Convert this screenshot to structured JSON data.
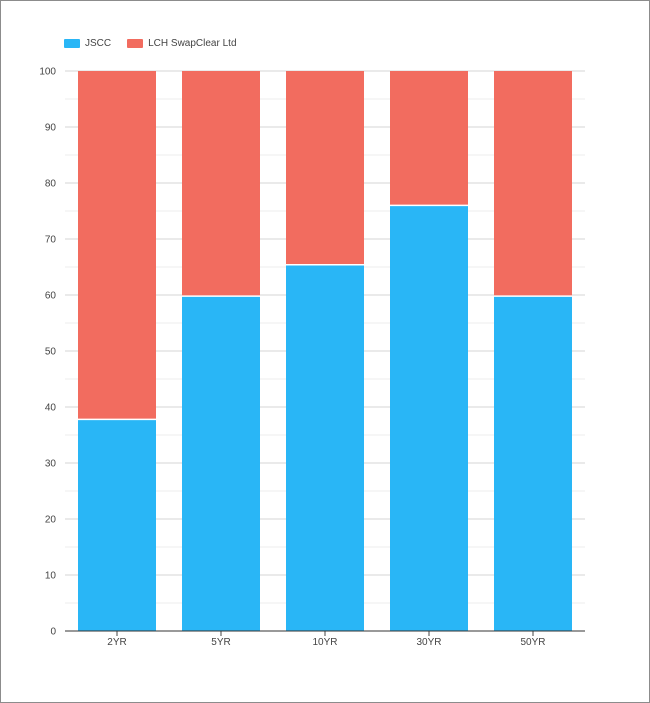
{
  "chart_data": {
    "type": "bar",
    "stacked": true,
    "categories": [
      "2YR",
      "5YR",
      "10YR",
      "30YR",
      "50YR"
    ],
    "series": [
      {
        "name": "JSCC",
        "color": "#29b6f6",
        "values": [
          37.8,
          59.8,
          65.4,
          76.0,
          59.8
        ]
      },
      {
        "name": "LCH SwapClear Ltd",
        "color": "#f26c5f",
        "values": [
          62.2,
          40.2,
          34.6,
          24.0,
          40.2
        ]
      }
    ],
    "ylim": [
      0,
      100
    ],
    "yticks": [
      0,
      10,
      20,
      30,
      40,
      50,
      60,
      70,
      80,
      90,
      100
    ],
    "grid": true,
    "legend": "top-left"
  }
}
